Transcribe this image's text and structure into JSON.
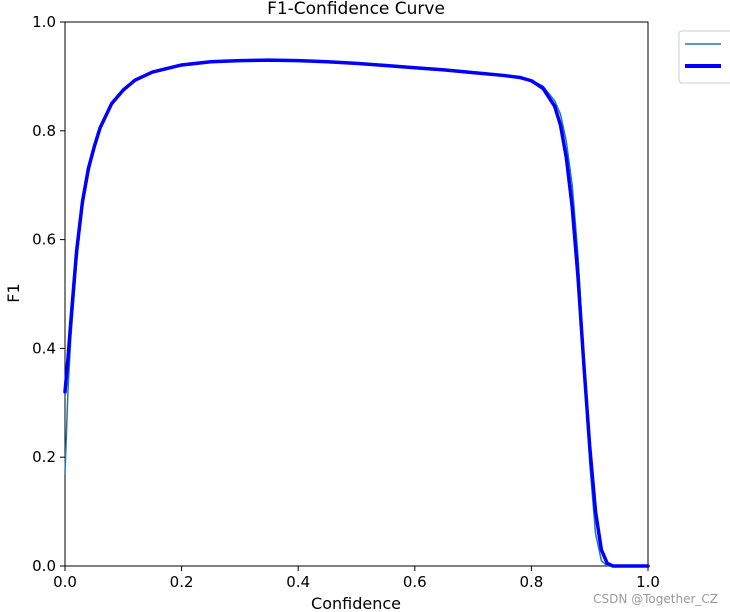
{
  "chart_data": {
    "type": "line",
    "title": "F1-Confidence Curve",
    "xlabel": "Confidence",
    "ylabel": "F1",
    "xlim": [
      0.0,
      1.0
    ],
    "ylim": [
      0.0,
      1.0
    ],
    "xticks": [
      "0.0",
      "0.2",
      "0.4",
      "0.6",
      "0.8",
      "1.0"
    ],
    "yticks": [
      "0.0",
      "0.2",
      "0.4",
      "0.6",
      "0.8",
      "1.0"
    ],
    "grid": false,
    "legend_position": "outside-top-right",
    "series": [
      {
        "color": "#1f77b4",
        "style": "thin",
        "points": [
          [
            0.0,
            0.17
          ],
          [
            0.005,
            0.32
          ],
          [
            0.01,
            0.42
          ],
          [
            0.02,
            0.56
          ],
          [
            0.03,
            0.66
          ],
          [
            0.04,
            0.72
          ],
          [
            0.05,
            0.77
          ],
          [
            0.06,
            0.805
          ],
          [
            0.08,
            0.85
          ],
          [
            0.1,
            0.875
          ],
          [
            0.12,
            0.893
          ],
          [
            0.15,
            0.908
          ],
          [
            0.2,
            0.921
          ],
          [
            0.25,
            0.927
          ],
          [
            0.3,
            0.929
          ],
          [
            0.35,
            0.93
          ],
          [
            0.4,
            0.929
          ],
          [
            0.45,
            0.927
          ],
          [
            0.5,
            0.924
          ],
          [
            0.55,
            0.92
          ],
          [
            0.6,
            0.916
          ],
          [
            0.65,
            0.912
          ],
          [
            0.7,
            0.907
          ],
          [
            0.75,
            0.902
          ],
          [
            0.78,
            0.898
          ],
          [
            0.8,
            0.893
          ],
          [
            0.82,
            0.882
          ],
          [
            0.84,
            0.855
          ],
          [
            0.85,
            0.83
          ],
          [
            0.86,
            0.78
          ],
          [
            0.87,
            0.7
          ],
          [
            0.88,
            0.57
          ],
          [
            0.89,
            0.38
          ],
          [
            0.9,
            0.19
          ],
          [
            0.91,
            0.06
          ],
          [
            0.92,
            0.01
          ],
          [
            0.93,
            0.0
          ],
          [
            1.0,
            0.0
          ]
        ]
      },
      {
        "color": "#0000ff",
        "style": "thick",
        "points": [
          [
            0.0,
            0.32
          ],
          [
            0.005,
            0.38
          ],
          [
            0.01,
            0.45
          ],
          [
            0.02,
            0.58
          ],
          [
            0.03,
            0.67
          ],
          [
            0.04,
            0.73
          ],
          [
            0.05,
            0.77
          ],
          [
            0.06,
            0.805
          ],
          [
            0.08,
            0.85
          ],
          [
            0.1,
            0.875
          ],
          [
            0.12,
            0.893
          ],
          [
            0.15,
            0.908
          ],
          [
            0.2,
            0.921
          ],
          [
            0.25,
            0.927
          ],
          [
            0.3,
            0.929
          ],
          [
            0.35,
            0.93
          ],
          [
            0.4,
            0.929
          ],
          [
            0.45,
            0.927
          ],
          [
            0.5,
            0.924
          ],
          [
            0.55,
            0.92
          ],
          [
            0.6,
            0.916
          ],
          [
            0.65,
            0.912
          ],
          [
            0.7,
            0.907
          ],
          [
            0.75,
            0.902
          ],
          [
            0.78,
            0.898
          ],
          [
            0.8,
            0.892
          ],
          [
            0.82,
            0.878
          ],
          [
            0.84,
            0.845
          ],
          [
            0.85,
            0.81
          ],
          [
            0.86,
            0.75
          ],
          [
            0.87,
            0.66
          ],
          [
            0.88,
            0.53
          ],
          [
            0.89,
            0.37
          ],
          [
            0.9,
            0.22
          ],
          [
            0.91,
            0.1
          ],
          [
            0.92,
            0.03
          ],
          [
            0.93,
            0.005
          ],
          [
            0.94,
            0.0
          ],
          [
            1.0,
            0.0
          ]
        ]
      }
    ]
  },
  "watermark": "CSDN @Together_CZ"
}
